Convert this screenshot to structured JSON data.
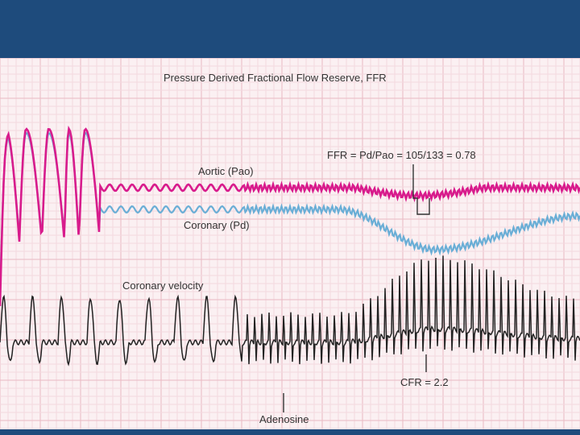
{
  "slide": {
    "header_color": "#1e4b7c"
  },
  "chart_data": {
    "type": "line",
    "title": "Pressure Derived Fractional Flow Reserve, FFR",
    "grid": true,
    "series": [
      {
        "name": "Aortic (Pao)",
        "color": "#d81b8c"
      },
      {
        "name": "Coronary (Pd)",
        "color": "#6aaed6"
      },
      {
        "name": "Coronary velocity",
        "color": "#222222"
      }
    ],
    "annotations": {
      "ffr": "FFR = Pd/Pao = 105/133 = 0.78",
      "cfr": "CFR = 2.2",
      "adenosine": "Adenosine"
    },
    "values": {
      "pd": 105,
      "pao": 133,
      "ffr": 0.78,
      "cfr": 2.2
    }
  }
}
